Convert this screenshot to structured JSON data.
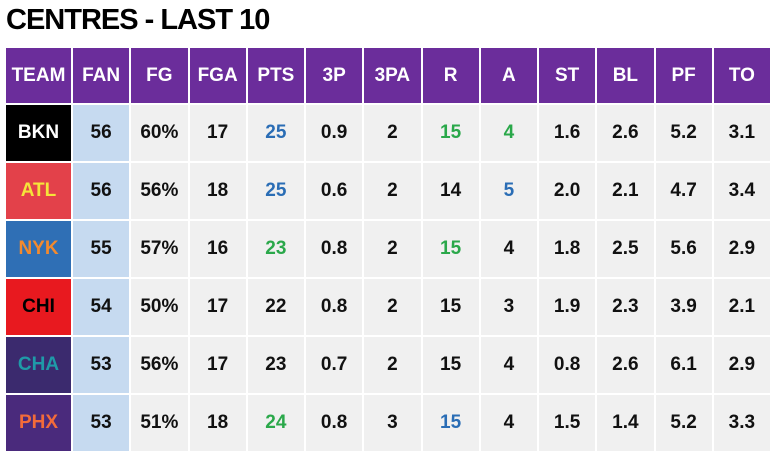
{
  "title": "CENTRES - LAST 10",
  "table": {
    "header": [
      "TEAM",
      "FAN",
      "FG",
      "FGA",
      "PTS",
      "3P",
      "3PA",
      "R",
      "A",
      "ST",
      "BL",
      "PF",
      "TO"
    ],
    "rows": [
      [
        "BKN",
        "56",
        "60%",
        "17",
        "25",
        "0.9",
        "2",
        "15",
        "4",
        "1.6",
        "2.6",
        "5.2",
        "3.1"
      ],
      [
        "ATL",
        "56",
        "56%",
        "18",
        "25",
        "0.6",
        "2",
        "14",
        "5",
        "2.0",
        "2.1",
        "4.7",
        "3.4"
      ],
      [
        "NYK",
        "55",
        "57%",
        "16",
        "23",
        "0.8",
        "2",
        "15",
        "4",
        "1.8",
        "2.5",
        "5.6",
        "2.9"
      ],
      [
        "CHI",
        "54",
        "50%",
        "17",
        "22",
        "0.8",
        "2",
        "15",
        "3",
        "1.9",
        "2.3",
        "3.9",
        "2.1"
      ],
      [
        "CHA",
        "53",
        "56%",
        "17",
        "23",
        "0.7",
        "2",
        "15",
        "4",
        "0.8",
        "2.6",
        "6.1",
        "2.9"
      ],
      [
        "PHX",
        "53",
        "51%",
        "18",
        "24",
        "0.8",
        "3",
        "15",
        "4",
        "1.5",
        "1.4",
        "5.2",
        "3.3"
      ]
    ]
  }
}
